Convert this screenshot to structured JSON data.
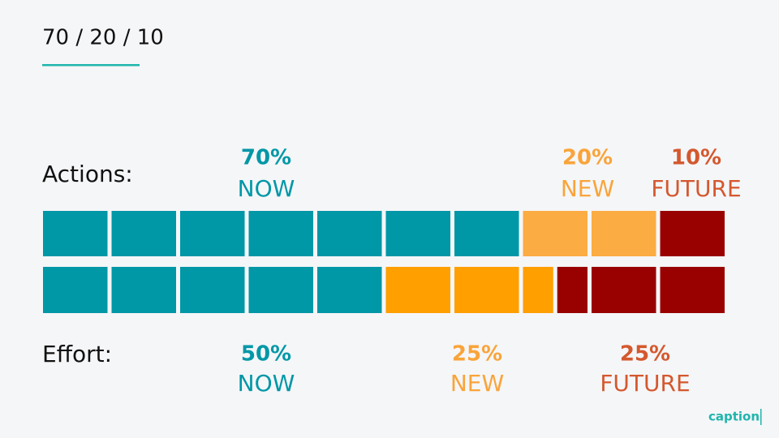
{
  "title": "70 / 20 / 10",
  "rows": [
    {
      "label": "Actions:",
      "segments": [
        {
          "value": 70,
          "label": "70%",
          "name": "NOW",
          "color": "#0097a7",
          "text_color": "#0097a7"
        },
        {
          "value": 20,
          "label": "20%",
          "name": "NEW",
          "color": "#fbac42",
          "text_color": "#f9a43a"
        },
        {
          "value": 10,
          "label": "10%",
          "name": "FUTURE",
          "color": "#990000",
          "text_color": "#d4582e"
        }
      ]
    },
    {
      "label": "Effort:",
      "segments": [
        {
          "value": 50,
          "label": "50%",
          "name": "NOW",
          "color": "#0097a7",
          "text_color": "#0097a7"
        },
        {
          "value": 25,
          "label": "25%",
          "name": "NEW",
          "color": "#ff9f00",
          "text_color": "#f9a43a"
        },
        {
          "value": 25,
          "label": "25%",
          "name": "FUTURE",
          "color": "#990000",
          "text_color": "#d4582e"
        }
      ]
    }
  ],
  "logo": "caption"
}
